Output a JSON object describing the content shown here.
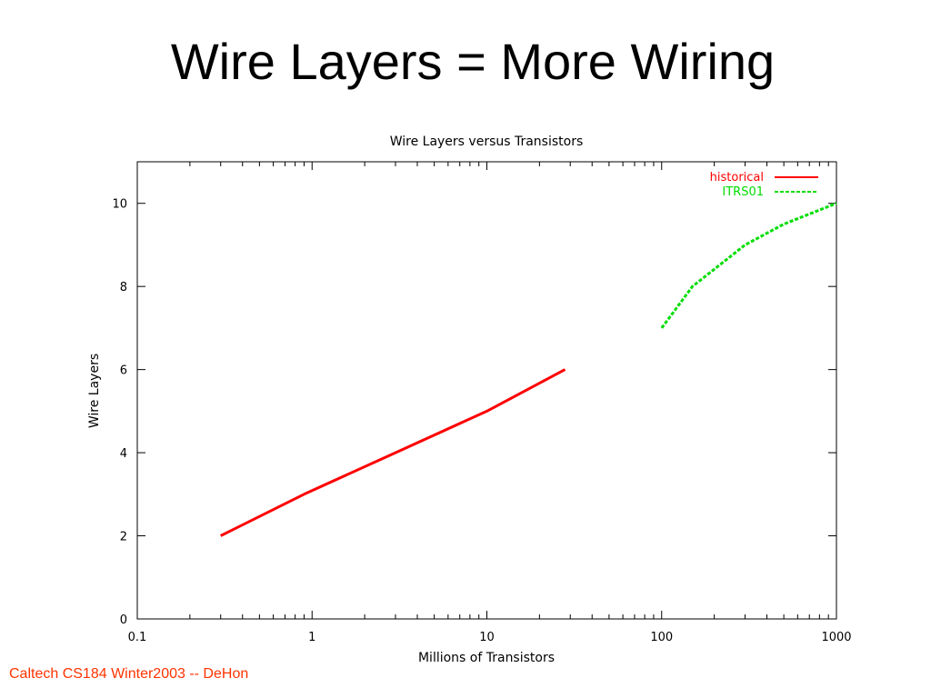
{
  "slide": {
    "title": "Wire Layers = More Wiring",
    "footer": "Caltech CS184 Winter2003 -- DeHon"
  },
  "chart_data": {
    "type": "line",
    "title": "Wire Layers versus Transistors",
    "xlabel": "Millions of Transistors",
    "ylabel": "Wire Layers",
    "xscale": "log",
    "xlim": [
      0.1,
      1000
    ],
    "ylim": [
      0,
      11
    ],
    "xticks": [
      0.1,
      1,
      10,
      100,
      1000
    ],
    "xtick_labels": [
      "0.1",
      "1",
      "10",
      "100",
      "1000"
    ],
    "yticks": [
      0,
      2,
      4,
      6,
      8,
      10
    ],
    "ytick_labels": [
      "0",
      "2",
      "4",
      "6",
      "8",
      "10"
    ],
    "grid": false,
    "legend_position": "top-right",
    "series": [
      {
        "name": "historical",
        "color": "#ff0000",
        "style": "solid",
        "x": [
          0.3,
          0.9,
          3,
          10,
          28
        ],
        "y": [
          2,
          3,
          4,
          5,
          6
        ]
      },
      {
        "name": "ITRS01",
        "color": "#00dd00",
        "style": "dashed",
        "x": [
          100,
          150,
          300,
          500,
          1000
        ],
        "y": [
          7,
          8,
          9,
          9.5,
          10
        ]
      }
    ]
  }
}
